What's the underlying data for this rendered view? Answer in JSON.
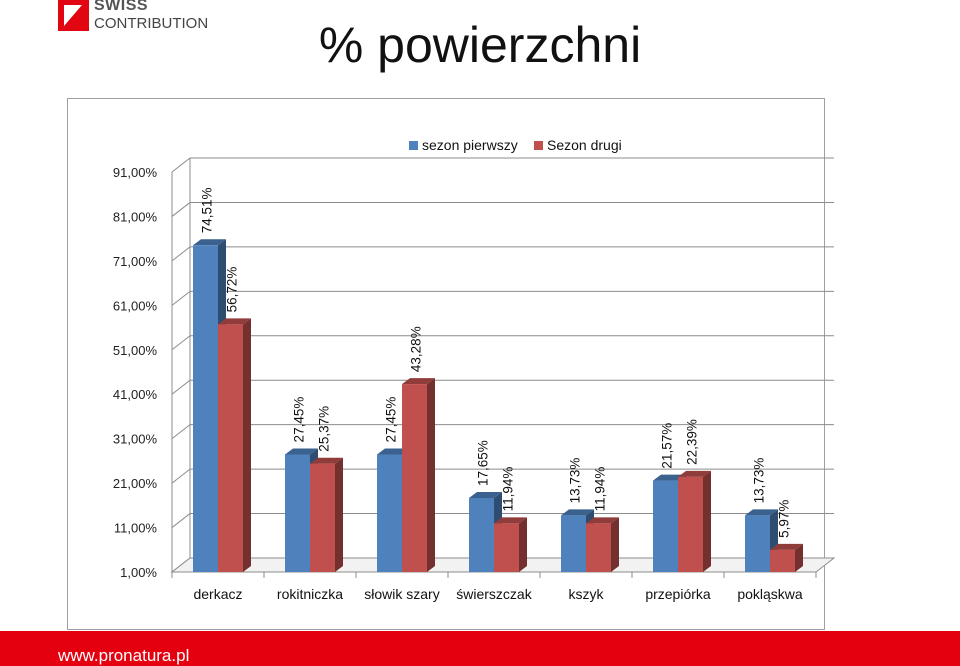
{
  "logo": {
    "line1": "SWISS",
    "line2": "CONTRIBUTION"
  },
  "page": {
    "title": "% powierzchni"
  },
  "footer": {
    "url": "www.pronatura.pl"
  },
  "colors": {
    "series1": "#4f81bd",
    "series2": "#c0504d",
    "footer_bg": "#e5000f",
    "logo_red": "#e20613"
  },
  "chart_data": {
    "type": "bar",
    "categories": [
      "derkacz",
      "rokitniczka",
      "słowik szary",
      "świerszczak",
      "kszyk",
      "przepiórka",
      "pokląskwa"
    ],
    "series": [
      {
        "name": "sezon pierwszy",
        "values": [
          74.51,
          27.45,
          27.45,
          17.65,
          13.73,
          21.57,
          13.73
        ],
        "labels": [
          "74,51%",
          "27,45%",
          "27,45%",
          "17,65%",
          "13,73%",
          "21,57%",
          "13,73%"
        ]
      },
      {
        "name": "Sezon drugi",
        "values": [
          56.72,
          25.37,
          43.28,
          11.94,
          11.94,
          22.39,
          5.97
        ],
        "labels": [
          "56,72%",
          "25,37%",
          "43,28%",
          "11,94%",
          "11,94%",
          "22,39%",
          "5,97%"
        ]
      }
    ],
    "yticks": [
      1,
      11,
      21,
      31,
      41,
      51,
      61,
      71,
      81,
      91
    ],
    "ytick_labels": [
      "1,00%",
      "11,00%",
      "21,00%",
      "31,00%",
      "41,00%",
      "51,00%",
      "61,00%",
      "71,00%",
      "81,00%",
      "91,00%"
    ],
    "ylim": [
      1,
      91
    ],
    "legend": "top",
    "grid": true,
    "style": "3d-column"
  }
}
